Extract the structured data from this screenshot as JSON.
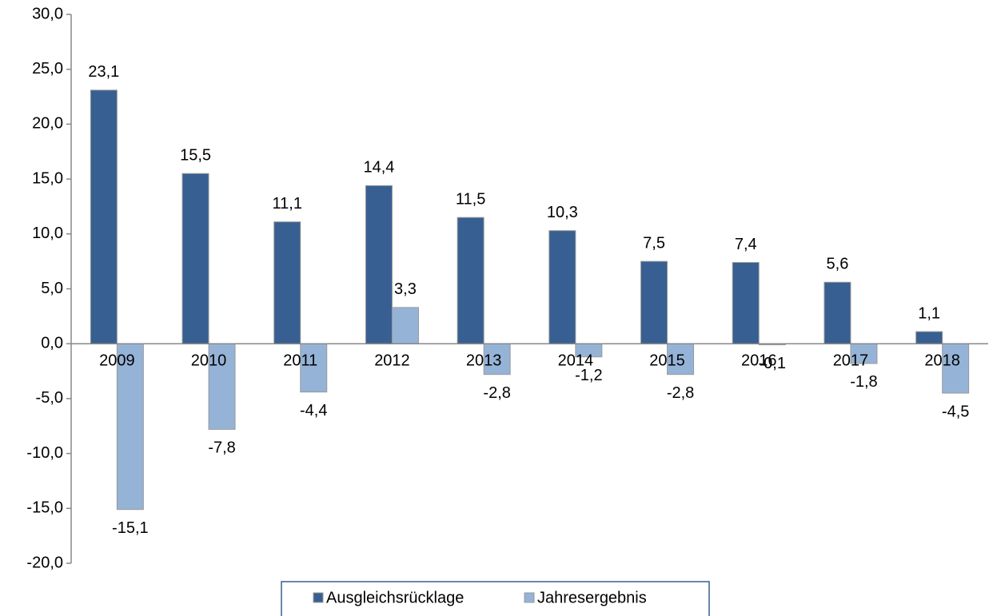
{
  "chart_data": {
    "type": "bar",
    "categories": [
      "2009",
      "2010",
      "2011",
      "2012",
      "2013",
      "2014",
      "2015",
      "2016",
      "2017",
      "2018"
    ],
    "series": [
      {
        "name": "Ausgleichsrücklage",
        "color": "#375f91",
        "values": [
          23.1,
          15.5,
          11.1,
          14.4,
          11.5,
          10.3,
          7.5,
          7.4,
          5.6,
          1.1
        ],
        "value_labels": [
          "23,1",
          "15,5",
          "11,1",
          "14,4",
          "11,5",
          "10,3",
          "7,5",
          "7,4",
          "5,6",
          "1,1"
        ]
      },
      {
        "name": "Jahresergebnis",
        "color": "#95b3d7",
        "values": [
          -15.1,
          -7.8,
          -4.4,
          3.3,
          -2.8,
          -1.2,
          -2.8,
          -0.1,
          -1.8,
          -4.5
        ],
        "value_labels": [
          "-15,1",
          "-7,8",
          "-4,4",
          "3,3",
          "-2,8",
          "-1,2",
          "-2,8",
          "-0,1",
          "-1,8",
          "-4,5"
        ]
      }
    ],
    "ylim": [
      -20,
      30
    ],
    "yticks": [
      {
        "value": -20,
        "label": "-20,0"
      },
      {
        "value": -15,
        "label": "-15,0"
      },
      {
        "value": -10,
        "label": "-10,0"
      },
      {
        "value": -5,
        "label": "-5,0"
      },
      {
        "value": 0,
        "label": "0,0"
      },
      {
        "value": 5,
        "label": "5,0"
      },
      {
        "value": 10,
        "label": "10,0"
      },
      {
        "value": 15,
        "label": "15,0"
      },
      {
        "value": 20,
        "label": "20,0"
      },
      {
        "value": 25,
        "label": "25,0"
      },
      {
        "value": 30,
        "label": "30,0"
      }
    ],
    "grid": false,
    "legend": "bottom"
  }
}
